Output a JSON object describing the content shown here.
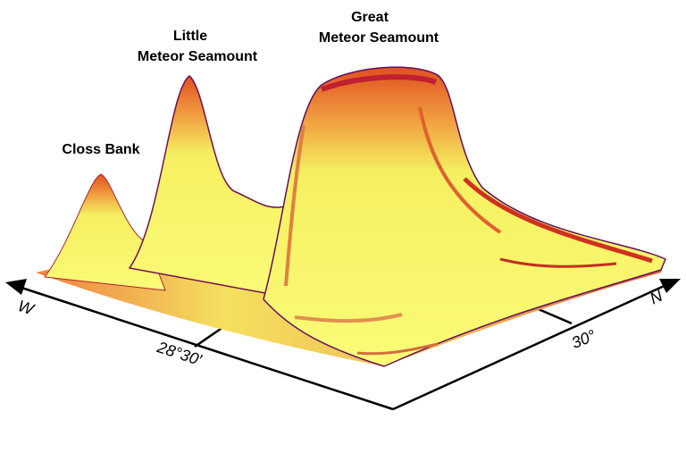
{
  "labels": {
    "closs_bank": "Closs Bank",
    "little_meteor": [
      "Little",
      "Meteor Seamount"
    ],
    "great_meteor": [
      "Great",
      "Meteor Seamount"
    ],
    "west": "W",
    "north": "N",
    "longitude_tick": "28°30′",
    "latitude_tick": "30°"
  }
}
